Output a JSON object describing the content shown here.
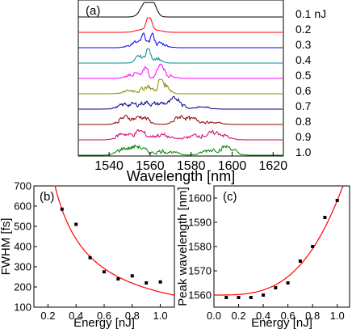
{
  "chart_data": [
    {
      "type": "line",
      "panel_label": "(a)",
      "xlabel": "Wavelength [nm]",
      "ylabel": "",
      "xlim": [
        1525,
        1625
      ],
      "xticks": [
        "1540",
        "1560",
        "1580",
        "1600",
        "1620"
      ],
      "xtick_values": [
        1540,
        1560,
        1580,
        1600,
        1620
      ],
      "series": [
        {
          "label": "0.1 nJ",
          "color": "#000000"
        },
        {
          "label": "0.2",
          "color": "#ff0000"
        },
        {
          "label": "0.3",
          "color": "#0000ff"
        },
        {
          "label": "0.4",
          "color": "#008b8b"
        },
        {
          "label": "0.5",
          "color": "#ff00ff"
        },
        {
          "label": "0.6",
          "color": "#8b8b00"
        },
        {
          "label": "0.7",
          "color": "#00008b"
        },
        {
          "label": "0.8",
          "color": "#8b0000"
        },
        {
          "label": "0.9",
          "color": "#cc0066"
        },
        {
          "label": "1.0",
          "color": "#008000"
        }
      ]
    },
    {
      "type": "scatter",
      "panel_label": "(b)",
      "xlabel": "Energy [nJ]",
      "ylabel": "FWHM [fs]",
      "xlim": [
        0.1,
        1.1
      ],
      "ylim": [
        100,
        700
      ],
      "xticks": [
        "0.2",
        "0.4",
        "0.6",
        "0.8",
        "1.0"
      ],
      "xtick_values": [
        0.2,
        0.4,
        0.6,
        0.8,
        1.0
      ],
      "yticks": [
        "100",
        "200",
        "300",
        "400",
        "500",
        "600",
        "700"
      ],
      "ytick_values": [
        100,
        200,
        300,
        400,
        500,
        600,
        700
      ],
      "x": [
        0.3,
        0.4,
        0.5,
        0.6,
        0.7,
        0.8,
        0.9,
        1.0
      ],
      "y": [
        585,
        510,
        345,
        275,
        240,
        255,
        220,
        225
      ],
      "marker_color": "#000000",
      "fit_color": "#ff0000"
    },
    {
      "type": "scatter",
      "panel_label": "(c)",
      "xlabel": "Energy [nJ]",
      "ylabel": "Peak wavelength [nm]",
      "xlim": [
        0.0,
        1.1
      ],
      "ylim": [
        1555,
        1605
      ],
      "xticks": [
        "0.0",
        "0.2",
        "0.4",
        "0.6",
        "0.8",
        "1.0"
      ],
      "xtick_values": [
        0.0,
        0.2,
        0.4,
        0.6,
        0.8,
        1.0
      ],
      "yticks": [
        "1560",
        "1570",
        "1580",
        "1590",
        "1600"
      ],
      "ytick_values": [
        1560,
        1570,
        1580,
        1590,
        1600
      ],
      "x": [
        0.1,
        0.2,
        0.3,
        0.4,
        0.5,
        0.6,
        0.7,
        0.8,
        0.9,
        1.0
      ],
      "y": [
        1559,
        1559,
        1559,
        1560,
        1563,
        1565,
        1574,
        1580,
        1592,
        1599
      ],
      "marker_color": "#000000",
      "fit_color": "#ff0000"
    }
  ]
}
